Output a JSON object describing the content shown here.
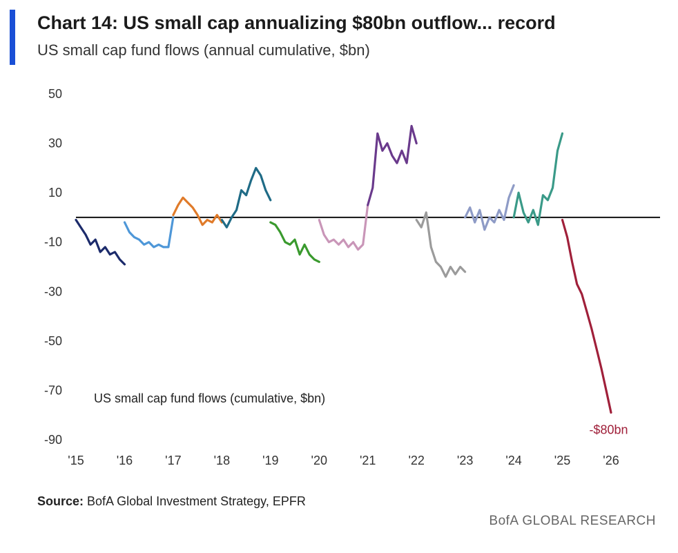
{
  "header": {
    "title": "Chart 14: US small cap annualizing $80bn outflow... record",
    "subtitle": "US small cap fund flows (annual cumulative, $bn)"
  },
  "footer": {
    "source_label": "Source:",
    "source_text": " BofA Global Investment Strategy, EPFR",
    "brand": "BofA GLOBAL RESEARCH"
  },
  "chart_data": {
    "type": "line",
    "title": "Chart 14: US small cap annualizing $80bn outflow... record",
    "subtitle": "US small cap fund flows (annual cumulative, $bn)",
    "ylim": [
      -90,
      50
    ],
    "yticks": [
      50,
      30,
      10,
      -10,
      -30,
      -50,
      -70,
      -90
    ],
    "xlim": [
      2015,
      2026
    ],
    "x_tick_labels": [
      {
        "x": 2015,
        "label": "'15"
      },
      {
        "x": 2016,
        "label": "'16"
      },
      {
        "x": 2017,
        "label": "'17"
      },
      {
        "x": 2018,
        "label": "'18"
      },
      {
        "x": 2019,
        "label": "'19"
      },
      {
        "x": 2020,
        "label": "'20"
      },
      {
        "x": 2021,
        "label": "'21"
      },
      {
        "x": 2022,
        "label": "'22"
      },
      {
        "x": 2023,
        "label": "'23"
      },
      {
        "x": 2024,
        "label": "'24"
      },
      {
        "x": 2025,
        "label": "'25"
      },
      {
        "x": 2026,
        "label": "'26"
      }
    ],
    "zero_line": 0,
    "in_chart_label": "US small cap fund flows (cumulative, $bn)",
    "annotation": {
      "x": 2025.95,
      "y": -86,
      "text": "-$80bn",
      "color": "#a0203a"
    },
    "series": [
      {
        "name": "2015",
        "color": "#1c2b6b",
        "x": [
          2015.0,
          2015.1,
          2015.2,
          2015.3,
          2015.4,
          2015.5,
          2015.6,
          2015.7,
          2015.8,
          2015.9,
          2016.0
        ],
        "y": [
          -1,
          -4,
          -7,
          -11,
          -9,
          -14,
          -12,
          -15,
          -14,
          -17,
          -19
        ]
      },
      {
        "name": "2016",
        "color": "#4e97d8",
        "x": [
          2016.0,
          2016.1,
          2016.2,
          2016.3,
          2016.4,
          2016.5,
          2016.6,
          2016.7,
          2016.8,
          2016.9,
          2017.0
        ],
        "y": [
          -2,
          -6,
          -8,
          -9,
          -11,
          -10,
          -12,
          -11,
          -12,
          -12,
          0
        ]
      },
      {
        "name": "2017",
        "color": "#e07b2a",
        "x": [
          2017.0,
          2017.1,
          2017.2,
          2017.3,
          2017.4,
          2017.5,
          2017.6,
          2017.7,
          2017.8,
          2017.9,
          2018.0
        ],
        "y": [
          1,
          5,
          8,
          6,
          4,
          1,
          -3,
          -1,
          -2,
          1,
          -2
        ]
      },
      {
        "name": "2018",
        "color": "#1f6b86",
        "x": [
          2018.0,
          2018.1,
          2018.2,
          2018.3,
          2018.4,
          2018.5,
          2018.6,
          2018.7,
          2018.8,
          2018.9,
          2019.0
        ],
        "y": [
          -1,
          -4,
          0,
          3,
          11,
          9,
          15,
          20,
          17,
          11,
          7
        ]
      },
      {
        "name": "2019",
        "color": "#3a9a2e",
        "x": [
          2019.0,
          2019.1,
          2019.2,
          2019.3,
          2019.4,
          2019.5,
          2019.6,
          2019.7,
          2019.8,
          2019.9,
          2020.0
        ],
        "y": [
          -2,
          -3,
          -6,
          -10,
          -11,
          -9,
          -15,
          -11,
          -15,
          -17,
          -18
        ]
      },
      {
        "name": "2020",
        "color": "#c996b8",
        "x": [
          2020.0,
          2020.1,
          2020.2,
          2020.3,
          2020.4,
          2020.5,
          2020.6,
          2020.7,
          2020.8,
          2020.9,
          2021.0
        ],
        "y": [
          -1,
          -7,
          -10,
          -9,
          -11,
          -9,
          -12,
          -10,
          -13,
          -11,
          5
        ]
      },
      {
        "name": "2021",
        "color": "#6a3a8c",
        "x": [
          2021.0,
          2021.1,
          2021.2,
          2021.3,
          2021.4,
          2021.5,
          2021.6,
          2021.7,
          2021.8,
          2021.9,
          2022.0
        ],
        "y": [
          5,
          12,
          34,
          27,
          30,
          25,
          22,
          27,
          22,
          37,
          30
        ]
      },
      {
        "name": "2022",
        "color": "#9b9b9b",
        "x": [
          2022.0,
          2022.1,
          2022.2,
          2022.3,
          2022.4,
          2022.5,
          2022.6,
          2022.7,
          2022.8,
          2022.9,
          2023.0
        ],
        "y": [
          -1,
          -4,
          2,
          -12,
          -18,
          -20,
          -24,
          -20,
          -23,
          -20,
          -22
        ]
      },
      {
        "name": "2023",
        "color": "#8e9bc6",
        "x": [
          2023.0,
          2023.1,
          2023.2,
          2023.3,
          2023.4,
          2023.5,
          2023.6,
          2023.7,
          2023.8,
          2023.9,
          2024.0
        ],
        "y": [
          0,
          4,
          -2,
          3,
          -5,
          0,
          -2,
          3,
          -1,
          8,
          13
        ]
      },
      {
        "name": "2024",
        "color": "#3a9a88",
        "x": [
          2024.0,
          2024.1,
          2024.2,
          2024.3,
          2024.4,
          2024.5,
          2024.6,
          2024.7,
          2024.8,
          2024.9,
          2025.0
        ],
        "y": [
          0,
          10,
          2,
          -2,
          3,
          -3,
          9,
          7,
          12,
          27,
          34
        ]
      },
      {
        "name": "2025",
        "color": "#a0203a",
        "x": [
          2025.0,
          2025.1,
          2025.2,
          2025.3,
          2025.4,
          2025.5,
          2025.6,
          2025.7,
          2025.8,
          2025.9,
          2026.0
        ],
        "y": [
          -1,
          -8,
          -18,
          -27,
          -31,
          -38,
          -45,
          -53,
          -61,
          -70,
          -79
        ]
      }
    ]
  }
}
